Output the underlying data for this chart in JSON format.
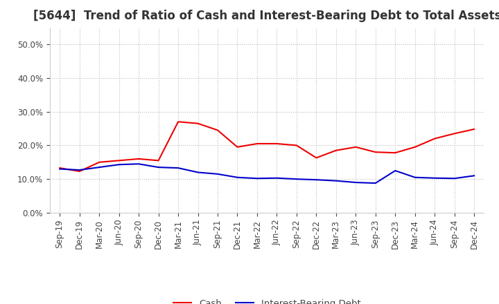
{
  "title": "[5644]  Trend of Ratio of Cash and Interest-Bearing Debt to Total Assets",
  "labels": [
    "Sep-19",
    "Dec-19",
    "Mar-20",
    "Jun-20",
    "Sep-20",
    "Dec-20",
    "Mar-21",
    "Jun-21",
    "Sep-21",
    "Dec-21",
    "Mar-22",
    "Jun-22",
    "Sep-22",
    "Dec-22",
    "Mar-23",
    "Jun-23",
    "Sep-23",
    "Dec-23",
    "Mar-24",
    "Jun-24",
    "Sep-24",
    "Dec-24"
  ],
  "cash": [
    0.133,
    0.123,
    0.15,
    0.155,
    0.16,
    0.155,
    0.27,
    0.265,
    0.245,
    0.195,
    0.205,
    0.205,
    0.2,
    0.163,
    0.185,
    0.195,
    0.18,
    0.178,
    0.195,
    0.22,
    0.235,
    0.248
  ],
  "debt": [
    0.13,
    0.127,
    0.135,
    0.143,
    0.145,
    0.135,
    0.133,
    0.12,
    0.115,
    0.105,
    0.102,
    0.103,
    0.1,
    0.098,
    0.095,
    0.09,
    0.088,
    0.125,
    0.105,
    0.103,
    0.102,
    0.11
  ],
  "cash_color": "#ee0000",
  "debt_color": "#0000cc",
  "ylim": [
    0.0,
    0.55
  ],
  "yticks": [
    0.0,
    0.1,
    0.2,
    0.3,
    0.4,
    0.5
  ],
  "grid_color": "#bbbbbb",
  "bg_color": "#ffffff",
  "legend_cash": "Cash",
  "legend_debt": "Interest-Bearing Debt",
  "title_fontsize": 12,
  "axis_fontsize": 8.5,
  "legend_fontsize": 9.5,
  "text_color": "#444444"
}
